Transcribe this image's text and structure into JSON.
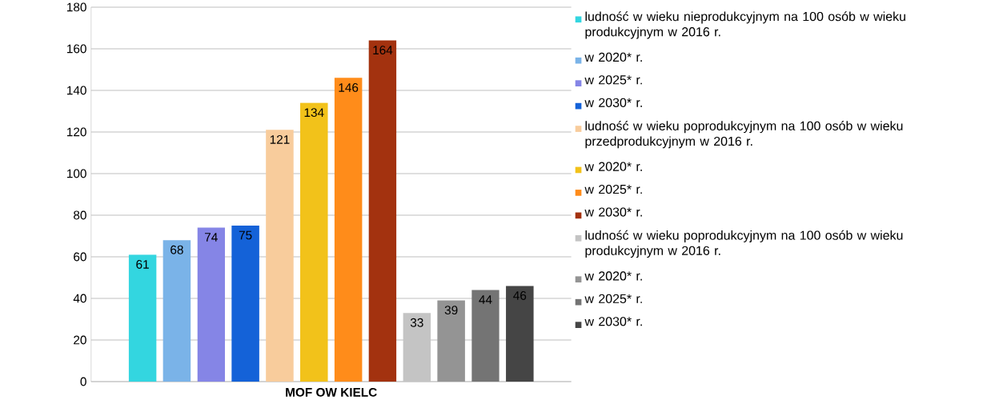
{
  "chart_data": {
    "type": "bar",
    "categories": [
      "MOF OW  KIELC"
    ],
    "series": [
      {
        "name": "ludność w wieku nieprodukcyjnym na 100 osób w wieku produkcyjnym w 2016 r.",
        "color": "#33d6e0",
        "values": [
          61
        ]
      },
      {
        "name": "w 2020* r.",
        "color": "#7ab3e8",
        "values": [
          68
        ]
      },
      {
        "name": "w 2025* r.",
        "color": "#8585e6",
        "values": [
          74
        ]
      },
      {
        "name": "w 2030* r.",
        "color": "#1462d8",
        "values": [
          75
        ]
      },
      {
        "name": "ludność w wieku poprodukcyjnym na 100 osób w wieku przedprodukcyjnym w 2016 r.",
        "color": "#f8cc9c",
        "values": [
          121
        ]
      },
      {
        "name": "w 2020* r.",
        "color": "#f2c21a",
        "values": [
          134
        ]
      },
      {
        "name": "w 2025* r.",
        "color": "#ff8c1a",
        "values": [
          146
        ]
      },
      {
        "name": "w 2030* r.",
        "color": "#a3320f",
        "values": [
          164
        ]
      },
      {
        "name": "ludność w wieku poprodukcyjnym na 100 osób w wieku produkcyjnym w 2016 r.",
        "color": "#c4c4c4",
        "values": [
          33
        ]
      },
      {
        "name": "w 2020* r.",
        "color": "#949494",
        "values": [
          39
        ]
      },
      {
        "name": "w 2025* r.",
        "color": "#747474",
        "values": [
          44
        ]
      },
      {
        "name": "w 2030* r.",
        "color": "#454545",
        "values": [
          46
        ]
      }
    ],
    "ylim": [
      0,
      180
    ],
    "yticks": [
      0,
      20,
      40,
      60,
      80,
      100,
      120,
      140,
      160,
      180
    ],
    "grid": "y",
    "legend": "right",
    "data_labels": true
  }
}
